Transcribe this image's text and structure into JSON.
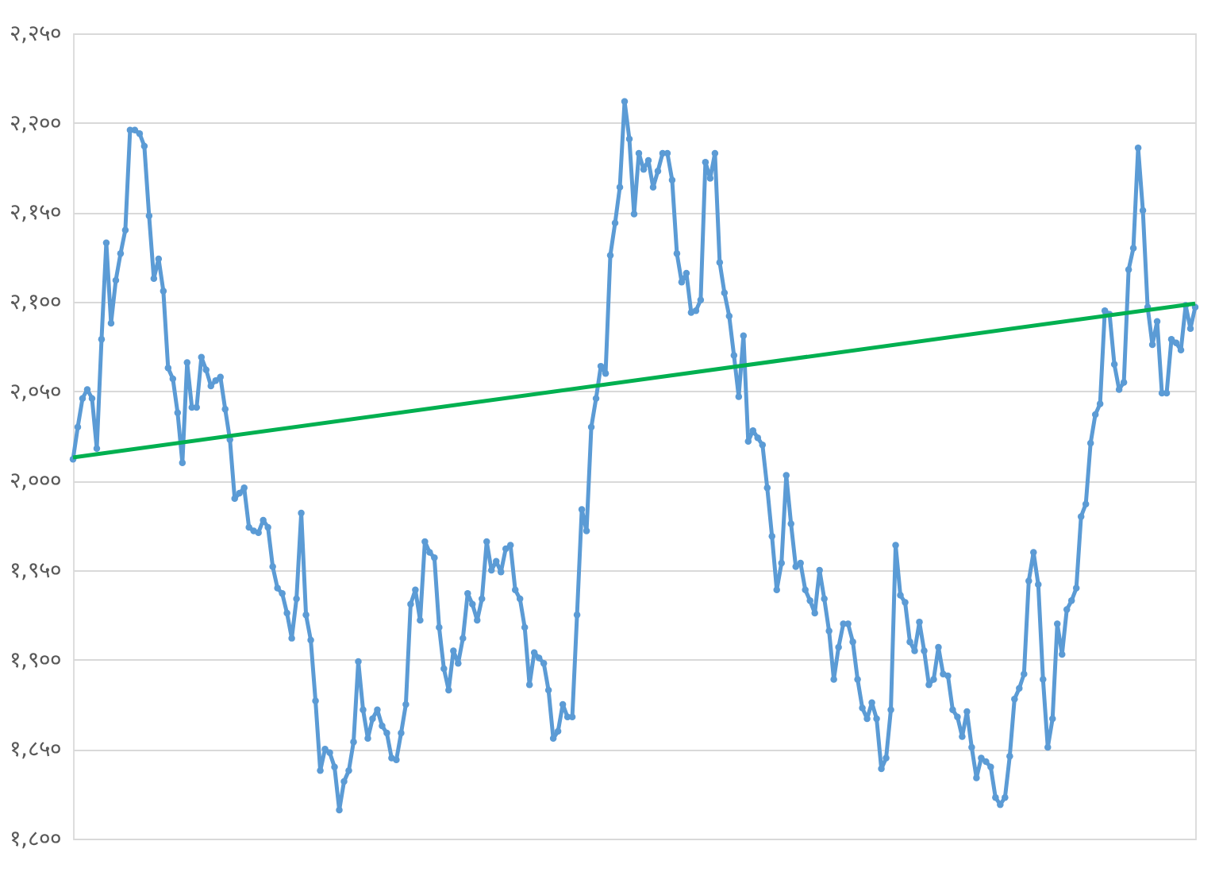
{
  "chart_data": {
    "type": "line",
    "categories": [
      null,
      null,
      null,
      null,
      null,
      null,
      null,
      null,
      null,
      null,
      null,
      null,
      null,
      null,
      null,
      null,
      null,
      null,
      null,
      null,
      null,
      null,
      null,
      null,
      null,
      null,
      null,
      null,
      null,
      null,
      null,
      null,
      null,
      null,
      null,
      null,
      null,
      null,
      null,
      null,
      null,
      null,
      null,
      null,
      null,
      null,
      null,
      null,
      null,
      null,
      null,
      null,
      null,
      null,
      null,
      null,
      null,
      null,
      null,
      null,
      null,
      null,
      null,
      null,
      null,
      null,
      null,
      null,
      null,
      null,
      null,
      null,
      null,
      null,
      null,
      null,
      null,
      null,
      null,
      null,
      null,
      null,
      null,
      null,
      null,
      null,
      null,
      null,
      null,
      null,
      null,
      null,
      null,
      null,
      null,
      null,
      null,
      null,
      null,
      null,
      null,
      null,
      null,
      null,
      null,
      null,
      null,
      null,
      null,
      null,
      null,
      null,
      null,
      null,
      null,
      null,
      null,
      null,
      null,
      null,
      null,
      null,
      null,
      null,
      null,
      null,
      null,
      null,
      null,
      null,
      null,
      null,
      null,
      null,
      null,
      null,
      null,
      null,
      null,
      null,
      null,
      null,
      null,
      null,
      null,
      null,
      null,
      null,
      null,
      null,
      null,
      null,
      null,
      null,
      null,
      null,
      null,
      null,
      null,
      null,
      null,
      null,
      null,
      null,
      null,
      null,
      null,
      null,
      null,
      null,
      null,
      null,
      null,
      null,
      null,
      null,
      null,
      null,
      null,
      null,
      null,
      null,
      null,
      null,
      null,
      null,
      null,
      null,
      null,
      null,
      null,
      null,
      null,
      null,
      null,
      null,
      null,
      null,
      null,
      null,
      null,
      null,
      null,
      null,
      null,
      null,
      null,
      null,
      null,
      null,
      null,
      null,
      null,
      null,
      null,
      null,
      null,
      null,
      null,
      null,
      null,
      null,
      null,
      null,
      null,
      null,
      null,
      null,
      null,
      null,
      null,
      null,
      null,
      null,
      null,
      null,
      null
    ],
    "series": [
      {
        "color": "#5b9bd5",
        "marker": "circle",
        "values": [
          2012,
          2030,
          2046,
          2051,
          2046,
          2018,
          2079,
          2133,
          2088,
          2112,
          2127,
          2140,
          2196,
          2196,
          2194,
          2187,
          2148,
          2113,
          2124,
          2106,
          2063,
          2057,
          2038,
          2010,
          2066,
          2041,
          2041,
          2069,
          2062,
          2053,
          2056,
          2058,
          2040,
          2023,
          1990,
          1993,
          1996,
          1974,
          1972,
          1971,
          1978,
          1974,
          1952,
          1940,
          1937,
          1926,
          1912,
          1934,
          1982,
          1925,
          1911,
          1877,
          1838,
          1850,
          1848,
          1840,
          1816,
          1832,
          1838,
          1854,
          1899,
          1872,
          1856,
          1867,
          1872,
          1863,
          1859,
          1845,
          1844,
          1859,
          1875,
          1931,
          1939,
          1922,
          1966,
          1960,
          1957,
          1918,
          1895,
          1883,
          1905,
          1898,
          1912,
          1937,
          1931,
          1922,
          1934,
          1966,
          1950,
          1955,
          1949,
          1962,
          1964,
          1939,
          1934,
          1918,
          1886,
          1904,
          1901,
          1898,
          1883,
          1856,
          1860,
          1875,
          1868,
          1868,
          1925,
          1984,
          1972,
          2030,
          2046,
          2064,
          2060,
          2126,
          2144,
          2164,
          2212,
          2191,
          2149,
          2183,
          2174,
          2179,
          2164,
          2173,
          2183,
          2183,
          2168,
          2127,
          2111,
          2116,
          2094,
          2095,
          2101,
          2178,
          2169,
          2183,
          2122,
          2105,
          2092,
          2070,
          2047,
          2081,
          2022,
          2028,
          2024,
          2020,
          1996,
          1969,
          1939,
          1954,
          2003,
          1976,
          1952,
          1954,
          1939,
          1933,
          1926,
          1950,
          1934,
          1916,
          1889,
          1907,
          1920,
          1920,
          1910,
          1889,
          1873,
          1867,
          1876,
          1867,
          1839,
          1845,
          1872,
          1964,
          1936,
          1932,
          1910,
          1905,
          1921,
          1905,
          1886,
          1889,
          1907,
          1892,
          1891,
          1872,
          1868,
          1857,
          1871,
          1851,
          1834,
          1845,
          1843,
          1840,
          1823,
          1819,
          1823,
          1846,
          1878,
          1884,
          1892,
          1944,
          1960,
          1942,
          1889,
          1851,
          1867,
          1920,
          1903,
          1928,
          1933,
          1940,
          1980,
          1987,
          2021,
          2037,
          2043,
          2095,
          2093,
          2065,
          2051,
          2055,
          2118,
          2130,
          2186,
          2151,
          2097,
          2076,
          2089,
          2049,
          2049,
          2079,
          2077,
          2073,
          2098,
          2085,
          2097
        ]
      },
      {
        "type": "line",
        "color": "#00b050",
        "marker": "none",
        "values": [
          2013,
          null,
          null,
          null,
          null,
          null,
          null,
          null,
          null,
          null,
          null,
          null,
          null,
          null,
          null,
          null,
          null,
          null,
          null,
          null,
          null,
          null,
          null,
          null,
          null,
          null,
          null,
          null,
          null,
          null,
          null,
          null,
          null,
          null,
          null,
          null,
          null,
          null,
          null,
          null,
          null,
          null,
          null,
          null,
          null,
          null,
          null,
          null,
          null,
          null,
          null,
          null,
          null,
          null,
          null,
          null,
          null,
          null,
          null,
          null,
          null,
          null,
          null,
          null,
          null,
          null,
          null,
          null,
          null,
          null,
          null,
          null,
          null,
          null,
          null,
          null,
          null,
          null,
          null,
          null,
          null,
          null,
          null,
          null,
          null,
          null,
          null,
          null,
          null,
          null,
          null,
          null,
          null,
          null,
          null,
          null,
          null,
          null,
          null,
          null,
          null,
          null,
          null,
          null,
          null,
          null,
          null,
          null,
          null,
          null,
          null,
          null,
          null,
          null,
          null,
          null,
          null,
          null,
          null,
          null,
          null,
          null,
          null,
          null,
          null,
          null,
          null,
          null,
          null,
          null,
          null,
          null,
          null,
          null,
          null,
          null,
          null,
          null,
          null,
          null,
          null,
          null,
          null,
          null,
          null,
          null,
          null,
          null,
          null,
          null,
          null,
          null,
          null,
          null,
          null,
          null,
          null,
          null,
          null,
          null,
          null,
          null,
          null,
          null,
          null,
          null,
          null,
          null,
          null,
          null,
          null,
          null,
          null,
          null,
          null,
          null,
          null,
          null,
          null,
          null,
          null,
          null,
          null,
          null,
          null,
          null,
          null,
          null,
          null,
          null,
          null,
          null,
          null,
          null,
          null,
          null,
          null,
          null,
          null,
          null,
          null,
          null,
          null,
          null,
          null,
          null,
          null,
          null,
          null,
          null,
          null,
          null,
          null,
          null,
          null,
          null,
          null,
          null,
          null,
          null,
          null,
          null,
          null,
          null,
          null,
          null,
          null,
          null,
          null,
          null,
          null,
          null,
          null,
          null,
          null,
          null,
          2099
        ]
      }
    ],
    "ylim": [
      1800,
      2250
    ],
    "yticks": [
      {
        "value": 1800,
        "label": "१,८००"
      },
      {
        "value": 1850,
        "label": "१,८५०"
      },
      {
        "value": 1900,
        "label": "१,९००"
      },
      {
        "value": 1950,
        "label": "१,९५०"
      },
      {
        "value": 2000,
        "label": "२,०००"
      },
      {
        "value": 2050,
        "label": "२,०५०"
      },
      {
        "value": 2100,
        "label": "२,१००"
      },
      {
        "value": 2150,
        "label": "२,१५०"
      },
      {
        "value": 2200,
        "label": "२,२००"
      },
      {
        "value": 2250,
        "label": "२,२५०"
      }
    ],
    "grid": "y",
    "tick_labels": "y",
    "line_style": "solid"
  }
}
